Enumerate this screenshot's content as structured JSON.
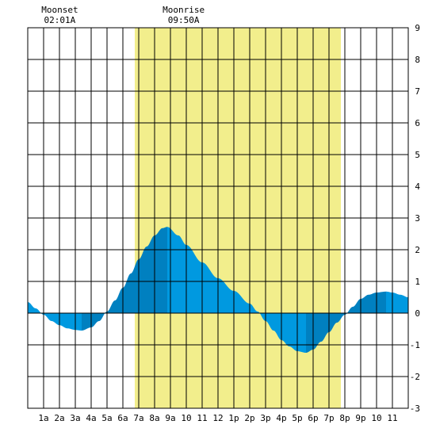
{
  "annotations": [
    {
      "label": "Moonset",
      "time": "02:01A",
      "hour": 2.02
    },
    {
      "label": "Moonrise",
      "time": "09:50A",
      "hour": 9.83
    }
  ],
  "colors": {
    "daylight": "#f2ee8c",
    "tide_light": "#0099e0",
    "tide_dark": "#0080c0",
    "grid": "#000000",
    "background": "#ffffff"
  },
  "chart_data": {
    "type": "area",
    "title": "",
    "xlabel": "",
    "ylabel": "",
    "xlim": [
      0,
      24
    ],
    "ylim": [
      -3,
      9
    ],
    "grid": true,
    "x_tick_labels": [
      {
        "hour": 1,
        "label": "1a"
      },
      {
        "hour": 2,
        "label": "2a"
      },
      {
        "hour": 3,
        "label": "3a"
      },
      {
        "hour": 4,
        "label": "4a"
      },
      {
        "hour": 5,
        "label": "5a"
      },
      {
        "hour": 6,
        "label": "6a"
      },
      {
        "hour": 7,
        "label": "7a"
      },
      {
        "hour": 8,
        "label": "8a"
      },
      {
        "hour": 9,
        "label": "9a"
      },
      {
        "hour": 10,
        "label": "10"
      },
      {
        "hour": 11,
        "label": "11"
      },
      {
        "hour": 12,
        "label": "12"
      },
      {
        "hour": 13,
        "label": "1p"
      },
      {
        "hour": 14,
        "label": "2p"
      },
      {
        "hour": 15,
        "label": "3p"
      },
      {
        "hour": 16,
        "label": "4p"
      },
      {
        "hour": 17,
        "label": "5p"
      },
      {
        "hour": 18,
        "label": "6p"
      },
      {
        "hour": 19,
        "label": "7p"
      },
      {
        "hour": 20,
        "label": "8p"
      },
      {
        "hour": 21,
        "label": "9p"
      },
      {
        "hour": 22,
        "label": "10"
      },
      {
        "hour": 23,
        "label": "11"
      }
    ],
    "y_ticks": [
      -3,
      -2,
      -1,
      0,
      1,
      2,
      3,
      4,
      5,
      6,
      7,
      8,
      9
    ],
    "daylight": {
      "start_hour": 6.75,
      "end_hour": 19.75
    },
    "extremes": [
      {
        "hour": 3.4,
        "value": -0.55
      },
      {
        "hour": 8.8,
        "value": 2.72
      },
      {
        "hour": 17.55,
        "value": -1.25
      },
      {
        "hour": 22.6,
        "value": 0.68
      }
    ],
    "series": [
      {
        "x": [
          0,
          0.5,
          1,
          1.5,
          2,
          2.5,
          3,
          3.4,
          4,
          4.5,
          5,
          5.5,
          6,
          6.5,
          7,
          7.5,
          8,
          8.5,
          8.8,
          9.5,
          10,
          11,
          12,
          13,
          14,
          14.5,
          15,
          15.5,
          16,
          16.5,
          17,
          17.55,
          18,
          18.5,
          19,
          19.5,
          20,
          20.5,
          21,
          21.5,
          22,
          22.6,
          23,
          23.5,
          24
        ],
        "y": [
          0.35,
          0.15,
          -0.05,
          -0.25,
          -0.38,
          -0.48,
          -0.53,
          -0.55,
          -0.45,
          -0.25,
          0.05,
          0.4,
          0.8,
          1.25,
          1.7,
          2.1,
          2.45,
          2.68,
          2.72,
          2.45,
          2.15,
          1.6,
          1.1,
          0.7,
          0.3,
          0.05,
          -0.25,
          -0.55,
          -0.85,
          -1.05,
          -1.2,
          -1.25,
          -1.15,
          -0.9,
          -0.6,
          -0.3,
          -0.05,
          0.2,
          0.45,
          0.58,
          0.65,
          0.68,
          0.65,
          0.58,
          0.5
        ]
      }
    ]
  }
}
